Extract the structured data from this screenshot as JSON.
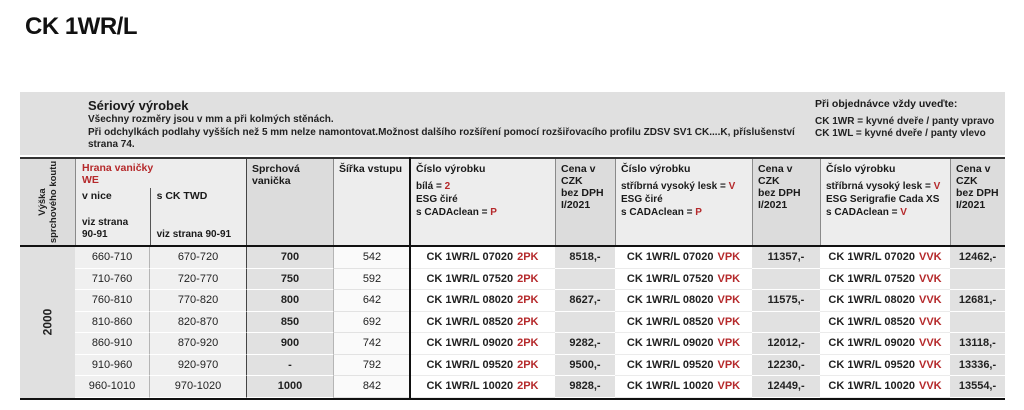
{
  "colors": {
    "accent_red": "#b5292b"
  },
  "page": {
    "title": "CK 1WR/L"
  },
  "info": {
    "left": {
      "title": "Sériový výrobek",
      "line1": "Všechny rozměry jsou v mm a při kolmých stěnách.",
      "line2": "Při odchylkách podlahy vyšších než 5 mm nelze namontovat.Možnost dalšího rozšíření pomocí rozšiřovacího profilu ZDSV SV1 CK....K, příslušenství",
      "line3": "strana 74."
    },
    "right": {
      "title": "Při objednávce vždy uveďte:",
      "line1": "CK 1WR = kyvné dveře / panty vpravo",
      "line2": "CK 1WL = kyvné dveře / panty vlevo"
    }
  },
  "table": {
    "header": {
      "height_l1": "Výška",
      "height_l2": "sprchového koutu",
      "group": {
        "title": "Hrana vaničky",
        "subtitle": "WE",
        "col_a": "v nice",
        "col_b": "s CK TWD",
        "note_a": "viz strana 90-91",
        "note_b": "viz strana 90-91"
      },
      "tray": "Sprchová vanička",
      "entry_width": "Šířka vstupu",
      "p1": {
        "title": "Číslo výrobku",
        "l1t": "bílá = ",
        "l1c": "2",
        "l2t": "ESG čiré",
        "l2c": "",
        "l3t": "s CADAclean = ",
        "l3c": "P"
      },
      "p2": {
        "title": "Číslo výrobku",
        "l1t": "stříbrná vysoký lesk = ",
        "l1c": "V",
        "l2t": "ESG čiré",
        "l2c": "",
        "l3t": "s CADAclean = ",
        "l3c": "P"
      },
      "p3": {
        "title": "Číslo výrobku",
        "l1t": "stříbrná vysoký lesk = ",
        "l1c": "V",
        "l2t": "ESG Serigrafie Cada XS",
        "l2c": "",
        "l3t": "s CADAclean = ",
        "l3c": "V"
      },
      "price": {
        "l1": "Cena v CZK",
        "l2": "bez DPH",
        "l3": "I/2021"
      }
    },
    "height_span": "2000",
    "rows": [
      {
        "nice": "660-710",
        "twd": "670-720",
        "tray": "700",
        "width": "542",
        "c1": "CK 1WR/L 07020",
        "s1": "2PK",
        "p1": "8518,-",
        "c2": "CK 1WR/L 07020",
        "s2": "VPK",
        "p2": "11357,-",
        "c3": "CK 1WR/L 07020",
        "s3": "VVK",
        "p3": "12462,-"
      },
      {
        "nice": "710-760",
        "twd": "720-770",
        "tray": "750",
        "width": "592",
        "c1": "CK 1WR/L 07520",
        "s1": "2PK",
        "p1": "",
        "c2": "CK 1WR/L 07520",
        "s2": "VPK",
        "p2": "",
        "c3": "CK 1WR/L 07520",
        "s3": "VVK",
        "p3": ""
      },
      {
        "nice": "760-810",
        "twd": "770-820",
        "tray": "800",
        "width": "642",
        "c1": "CK 1WR/L 08020",
        "s1": "2PK",
        "p1": "8627,-",
        "c2": "CK 1WR/L 08020",
        "s2": "VPK",
        "p2": "11575,-",
        "c3": "CK 1WR/L 08020",
        "s3": "VVK",
        "p3": "12681,-"
      },
      {
        "nice": "810-860",
        "twd": "820-870",
        "tray": "850",
        "width": "692",
        "c1": "CK 1WR/L 08520",
        "s1": "2PK",
        "p1": "",
        "c2": "CK 1WR/L 08520",
        "s2": "VPK",
        "p2": "",
        "c3": "CK 1WR/L 08520",
        "s3": "VVK",
        "p3": ""
      },
      {
        "nice": "860-910",
        "twd": "870-920",
        "tray": "900",
        "width": "742",
        "c1": "CK 1WR/L 09020",
        "s1": "2PK",
        "p1": "9282,-",
        "c2": "CK 1WR/L 09020",
        "s2": "VPK",
        "p2": "12012,-",
        "c3": "CK 1WR/L 09020",
        "s3": "VVK",
        "p3": "13118,-"
      },
      {
        "nice": "910-960",
        "twd": "920-970",
        "tray": "-",
        "width": "792",
        "c1": "CK 1WR/L 09520",
        "s1": "2PK",
        "p1": "9500,-",
        "c2": "CK 1WR/L 09520",
        "s2": "VPK",
        "p2": "12230,-",
        "c3": "CK 1WR/L 09520",
        "s3": "VVK",
        "p3": "13336,-"
      },
      {
        "nice": "960-1010",
        "twd": "970-1020",
        "tray": "1000",
        "width": "842",
        "c1": "CK 1WR/L 10020",
        "s1": "2PK",
        "p1": "9828,-",
        "c2": "CK 1WR/L 10020",
        "s2": "VPK",
        "p2": "12449,-",
        "c3": "CK 1WR/L 10020",
        "s3": "VVK",
        "p3": "13554,-"
      }
    ]
  }
}
